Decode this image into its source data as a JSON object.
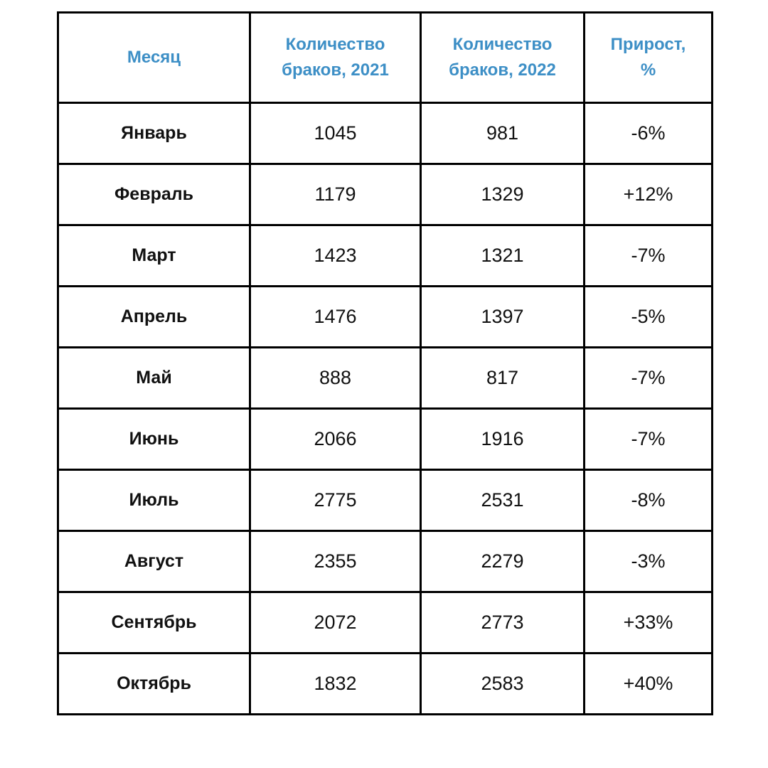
{
  "colors": {
    "header_text": "#3d8fc6",
    "border": "#000000",
    "body_text": "#111111",
    "background": "#ffffff"
  },
  "chart_data": {
    "type": "table",
    "columns": [
      "Месяц",
      "Количество браков, 2021",
      "Количество браков, 2022",
      "Прирост, %"
    ],
    "rows": [
      [
        "Январь",
        "1045",
        "981",
        "-6%"
      ],
      [
        "Февраль",
        "1179",
        "1329",
        "+12%"
      ],
      [
        "Март",
        "1423",
        "1321",
        "-7%"
      ],
      [
        "Апрель",
        "1476",
        "1397",
        "-5%"
      ],
      [
        "Май",
        "888",
        "817",
        "-7%"
      ],
      [
        "Июнь",
        "2066",
        "1916",
        "-7%"
      ],
      [
        "Июль",
        "2775",
        "2531",
        "-8%"
      ],
      [
        "Август",
        "2355",
        "2279",
        "-3%"
      ],
      [
        "Сентябрь",
        "2072",
        "2773",
        "+33%"
      ],
      [
        "Октябрь",
        "1832",
        "2583",
        "+40%"
      ]
    ]
  }
}
